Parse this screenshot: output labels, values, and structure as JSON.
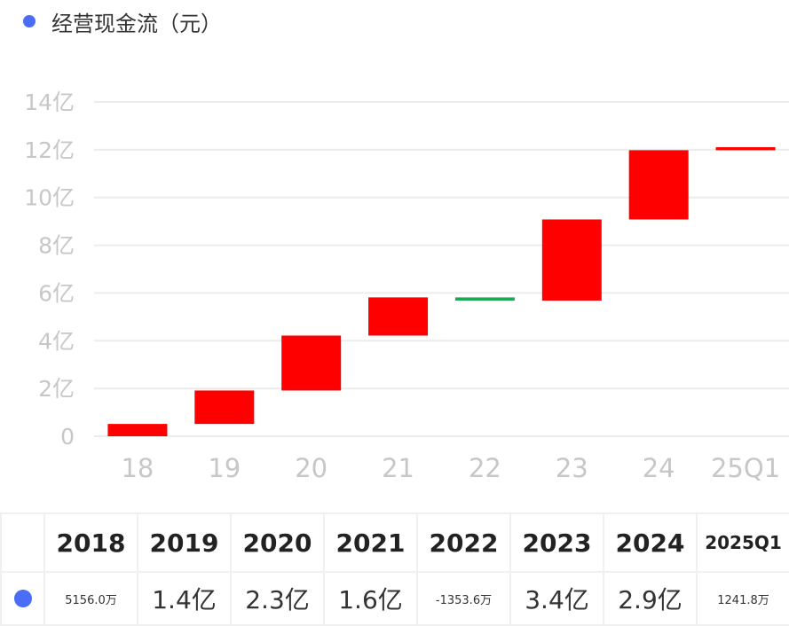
{
  "legend": {
    "label": "经营现金流（元）",
    "color": "#4a6cf7"
  },
  "colors": {
    "increase": "#ff0000",
    "decrease": "#1aaa55",
    "grid": "#ececec",
    "axis_text": "#c7c7c7"
  },
  "chart_data": {
    "type": "bar",
    "subtype": "waterfall",
    "categories": [
      "18",
      "19",
      "20",
      "21",
      "22",
      "23",
      "24",
      "25Q1"
    ],
    "series": [
      {
        "name": "经营现金流（元）",
        "values": [
          0.5156,
          1.4,
          2.3,
          1.6,
          -0.13536,
          3.4,
          2.9,
          0.12418
        ]
      }
    ],
    "ylim": [
      0,
      14
    ],
    "yticks": [
      0,
      2,
      4,
      6,
      8,
      10,
      12,
      14
    ],
    "ytick_labels": [
      "0",
      "2亿",
      "4亿",
      "6亿",
      "8亿",
      "10亿",
      "12亿",
      "14亿"
    ],
    "y_unit": "亿",
    "grid": true,
    "legend_position": "top-left"
  },
  "table": {
    "years": [
      "2018",
      "2019",
      "2020",
      "2021",
      "2022",
      "2023",
      "2024",
      "2025Q1"
    ],
    "values": [
      "5156.0万",
      "1.4亿",
      "2.3亿",
      "1.6亿",
      "-1353.6万",
      "3.4亿",
      "2.9亿",
      "1241.8万"
    ]
  }
}
